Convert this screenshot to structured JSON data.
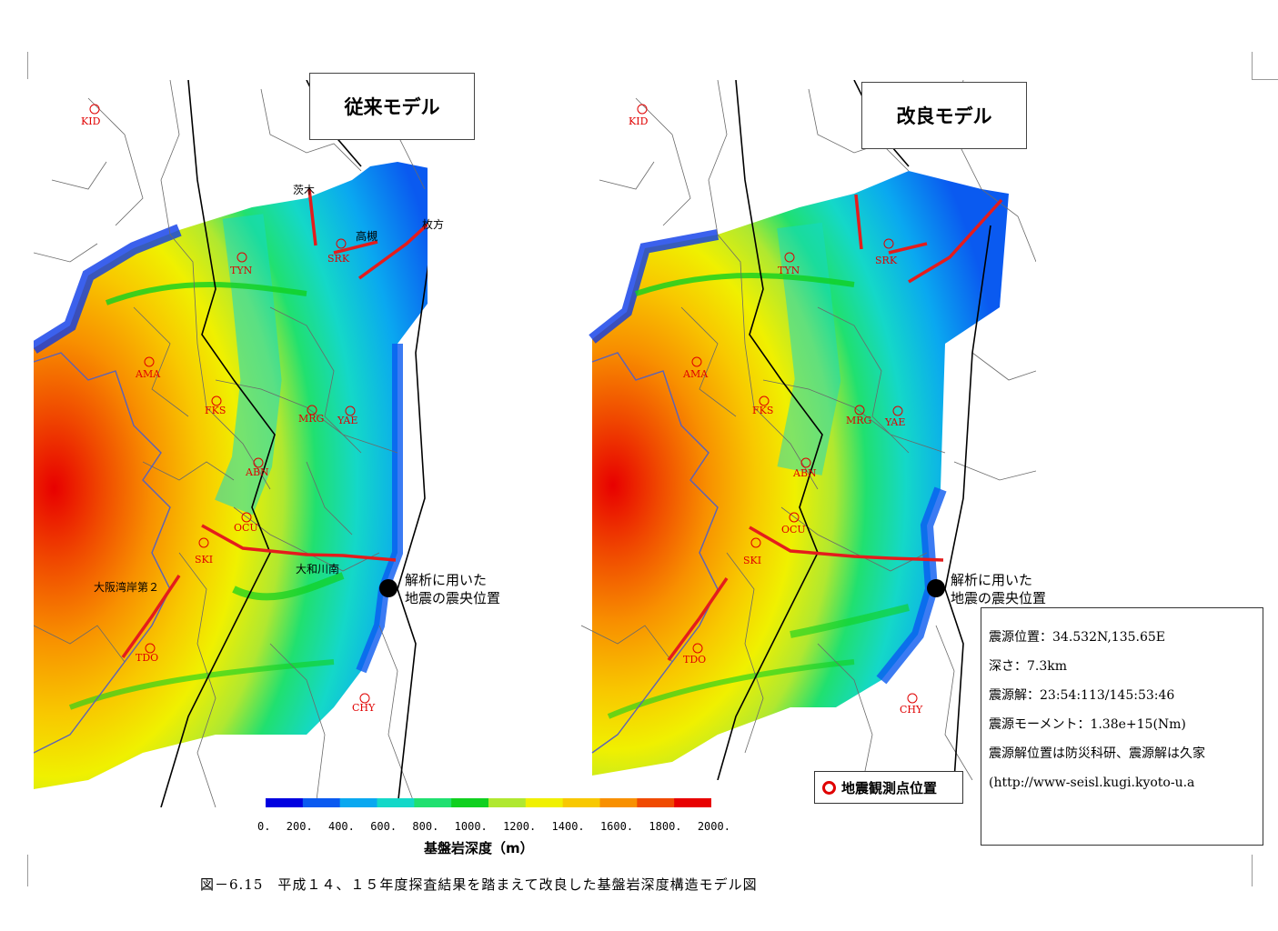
{
  "panels": {
    "left": {
      "title": "従来モデル"
    },
    "right": {
      "title": "改良モデル"
    }
  },
  "stations": [
    {
      "code": "KID"
    },
    {
      "code": "TYN"
    },
    {
      "code": "SRK"
    },
    {
      "code": "AMA"
    },
    {
      "code": "FKS"
    },
    {
      "code": "MRG"
    },
    {
      "code": "YAE"
    },
    {
      "code": "ABN"
    },
    {
      "code": "OCU"
    },
    {
      "code": "SKI"
    },
    {
      "code": "TDO"
    },
    {
      "code": "CHY"
    }
  ],
  "faults": {
    "ibaraki": "茨木",
    "takatsuki": "高槻",
    "hirakata": "枚方",
    "yamatogawa_minami": "大和川南",
    "osakawangan_2": "大阪湾岸第２"
  },
  "epicenter_label": [
    "解析に用いた",
    "地震の震央位置"
  ],
  "info": {
    "location": "震源位置：34.532N,135.65E",
    "depth": "深さ：7.3km",
    "mechanism": "震源解：23:54:113/145:53:46",
    "moment": "震源モーメント：1.38e+15(Nm)",
    "source": "震源解位置は防災科研、震源解は久家",
    "url": "(http://www-seisl.kugi.kyoto-u.a"
  },
  "legend": {
    "station_label": "地震観測点位置",
    "station_icon": "red-ring-icon",
    "station_color": "#e00000"
  },
  "colorbar": {
    "title": "基盤岩深度（m）",
    "min": 0,
    "max": 2000,
    "ticks": [
      "0.",
      "200.",
      "400.",
      "600.",
      "800.",
      "1000.",
      "1200.",
      "1400.",
      "1600.",
      "1800.",
      "2000."
    ],
    "colors": [
      "#0000e0",
      "#0a5af0",
      "#0aa8f0",
      "#14d8c8",
      "#20e070",
      "#10d020",
      "#b0e830",
      "#f0f000",
      "#f8c800",
      "#f89000",
      "#f04a00",
      "#e80000"
    ]
  },
  "caption": "図－6.15　平成１４、１５年度探査結果を踏まえて改良した基盤岩深度構造モデル図"
}
